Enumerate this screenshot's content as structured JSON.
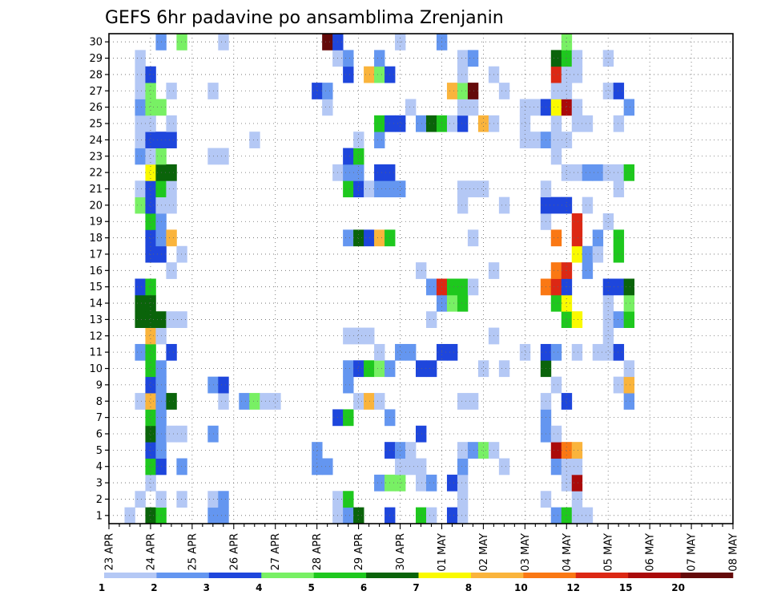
{
  "chart_data": {
    "type": "heatmap",
    "title": "GEFS 6hr padavine po ansamblima Zrenjanin",
    "xlabel": "",
    "ylabel": "",
    "x_tick_labels": [
      "23 APR",
      "24 APR",
      "25 APR",
      "26 APR",
      "27 APR",
      "28 APR",
      "29 APR",
      "30 APR",
      "01 MAY",
      "02 MAY",
      "03 MAY",
      "04 MAY",
      "05 MAY",
      "06 MAY",
      "07 MAY",
      "08 MAY"
    ],
    "y_tick_labels": [
      "1",
      "2",
      "3",
      "4",
      "5",
      "6",
      "7",
      "8",
      "9",
      "10",
      "11",
      "12",
      "13",
      "14",
      "15",
      "16",
      "17",
      "18",
      "19",
      "20",
      "21",
      "22",
      "23",
      "24",
      "25",
      "26",
      "27",
      "28",
      "29",
      "30"
    ],
    "x_steps_per_day": 4,
    "x_step_count": 61,
    "y_range": [
      1,
      30
    ],
    "grid": true,
    "colorbar": {
      "levels": [
        "1",
        "2",
        "3",
        "4",
        "5",
        "6",
        "7",
        "8",
        "10",
        "12",
        "15",
        "20"
      ],
      "colors": [
        "#b4c8f5",
        "#6496f0",
        "#1e46dc",
        "#78f064",
        "#1ec81e",
        "#0a640a",
        "#fafa00",
        "#fab43c",
        "#fa7814",
        "#dc2814",
        "#aa0a0a",
        "#640a0a"
      ]
    },
    "cells_format": "[timestep_index, ensemble_member, color_class]",
    "cells": [
      [
        2,
        1,
        1
      ],
      [
        3,
        2,
        1
      ],
      [
        3,
        8,
        1
      ],
      [
        4,
        8,
        1
      ],
      [
        3,
        11,
        2
      ],
      [
        3,
        13,
        6
      ],
      [
        3,
        14,
        6
      ],
      [
        3,
        15,
        3
      ],
      [
        3,
        20,
        4
      ],
      [
        3,
        21,
        1
      ],
      [
        3,
        23,
        2
      ],
      [
        3,
        24,
        1
      ],
      [
        3,
        25,
        1
      ],
      [
        3,
        26,
        2
      ],
      [
        3,
        27,
        1
      ],
      [
        3,
        28,
        1
      ],
      [
        3,
        29,
        1
      ],
      [
        4,
        1,
        6
      ],
      [
        4,
        3,
        1
      ],
      [
        4,
        4,
        5
      ],
      [
        4,
        5,
        3
      ],
      [
        4,
        6,
        6
      ],
      [
        4,
        7,
        5
      ],
      [
        4,
        8,
        8
      ],
      [
        4,
        9,
        3
      ],
      [
        4,
        10,
        5
      ],
      [
        4,
        11,
        5
      ],
      [
        4,
        12,
        8
      ],
      [
        4,
        13,
        6
      ],
      [
        4,
        14,
        6
      ],
      [
        4,
        15,
        5
      ],
      [
        4,
        17,
        3
      ],
      [
        4,
        18,
        3
      ],
      [
        4,
        19,
        5
      ],
      [
        4,
        20,
        3
      ],
      [
        4,
        21,
        3
      ],
      [
        4,
        22,
        7
      ],
      [
        4,
        23,
        1
      ],
      [
        4,
        24,
        3
      ],
      [
        4,
        25,
        1
      ],
      [
        4,
        26,
        4
      ],
      [
        4,
        27,
        4
      ],
      [
        4,
        28,
        3
      ],
      [
        5,
        1,
        5
      ],
      [
        5,
        2,
        1
      ],
      [
        5,
        4,
        3
      ],
      [
        5,
        5,
        2
      ],
      [
        5,
        6,
        2
      ],
      [
        5,
        7,
        2
      ],
      [
        5,
        8,
        2
      ],
      [
        5,
        9,
        2
      ],
      [
        5,
        10,
        2
      ],
      [
        5,
        12,
        1
      ],
      [
        5,
        13,
        6
      ],
      [
        5,
        17,
        3
      ],
      [
        5,
        18,
        2
      ],
      [
        5,
        19,
        2
      ],
      [
        5,
        20,
        1
      ],
      [
        5,
        21,
        5
      ],
      [
        5,
        22,
        6
      ],
      [
        5,
        23,
        4
      ],
      [
        5,
        24,
        3
      ],
      [
        5,
        26,
        4
      ],
      [
        5,
        30,
        2
      ],
      [
        6,
        6,
        1
      ],
      [
        6,
        8,
        6
      ],
      [
        6,
        11,
        3
      ],
      [
        6,
        13,
        1
      ],
      [
        6,
        16,
        1
      ],
      [
        6,
        18,
        8
      ],
      [
        6,
        20,
        1
      ],
      [
        6,
        21,
        1
      ],
      [
        6,
        22,
        6
      ],
      [
        6,
        24,
        3
      ],
      [
        6,
        25,
        1
      ],
      [
        6,
        27,
        1
      ],
      [
        7,
        2,
        1
      ],
      [
        7,
        4,
        2
      ],
      [
        7,
        6,
        1
      ],
      [
        7,
        13,
        1
      ],
      [
        7,
        17,
        1
      ],
      [
        7,
        30,
        4
      ],
      [
        10,
        1,
        2
      ],
      [
        10,
        2,
        1
      ],
      [
        10,
        6,
        2
      ],
      [
        10,
        9,
        2
      ],
      [
        10,
        23,
        1
      ],
      [
        10,
        27,
        1
      ],
      [
        11,
        1,
        2
      ],
      [
        11,
        2,
        2
      ],
      [
        11,
        8,
        1
      ],
      [
        11,
        9,
        3
      ],
      [
        11,
        23,
        1
      ],
      [
        11,
        30,
        1
      ],
      [
        13,
        8,
        2
      ],
      [
        14,
        8,
        4
      ],
      [
        14,
        24,
        1
      ],
      [
        15,
        8,
        1
      ],
      [
        16,
        8,
        1
      ],
      [
        20,
        4,
        2
      ],
      [
        20,
        5,
        2
      ],
      [
        20,
        27,
        3
      ],
      [
        21,
        4,
        2
      ],
      [
        21,
        26,
        1
      ],
      [
        21,
        27,
        2
      ],
      [
        21,
        30,
        12
      ],
      [
        22,
        1,
        1
      ],
      [
        22,
        2,
        1
      ],
      [
        22,
        7,
        3
      ],
      [
        22,
        22,
        1
      ],
      [
        22,
        29,
        1
      ],
      [
        22,
        30,
        3
      ],
      [
        23,
        1,
        2
      ],
      [
        23,
        2,
        5
      ],
      [
        23,
        7,
        5
      ],
      [
        23,
        9,
        2
      ],
      [
        23,
        10,
        2
      ],
      [
        23,
        12,
        1
      ],
      [
        23,
        18,
        2
      ],
      [
        23,
        21,
        5
      ],
      [
        23,
        22,
        2
      ],
      [
        23,
        23,
        3
      ],
      [
        23,
        28,
        3
      ],
      [
        23,
        29,
        2
      ],
      [
        24,
        1,
        6
      ],
      [
        24,
        8,
        1
      ],
      [
        24,
        10,
        3
      ],
      [
        24,
        12,
        1
      ],
      [
        24,
        18,
        6
      ],
      [
        24,
        21,
        3
      ],
      [
        24,
        22,
        2
      ],
      [
        24,
        23,
        5
      ],
      [
        24,
        24,
        1
      ],
      [
        25,
        8,
        8
      ],
      [
        25,
        10,
        5
      ],
      [
        25,
        12,
        1
      ],
      [
        25,
        18,
        3
      ],
      [
        25,
        21,
        1
      ],
      [
        25,
        28,
        8
      ],
      [
        26,
        3,
        2
      ],
      [
        26,
        8,
        1
      ],
      [
        26,
        10,
        4
      ],
      [
        26,
        11,
        1
      ],
      [
        26,
        18,
        8
      ],
      [
        26,
        21,
        2
      ],
      [
        26,
        22,
        3
      ],
      [
        26,
        24,
        2
      ],
      [
        26,
        25,
        5
      ],
      [
        26,
        28,
        4
      ],
      [
        26,
        29,
        2
      ],
      [
        27,
        1,
        3
      ],
      [
        27,
        3,
        4
      ],
      [
        27,
        5,
        3
      ],
      [
        27,
        7,
        2
      ],
      [
        27,
        10,
        2
      ],
      [
        27,
        18,
        5
      ],
      [
        27,
        21,
        2
      ],
      [
        27,
        22,
        3
      ],
      [
        27,
        25,
        3
      ],
      [
        27,
        28,
        3
      ],
      [
        28,
        3,
        4
      ],
      [
        28,
        4,
        1
      ],
      [
        28,
        5,
        2
      ],
      [
        28,
        11,
        2
      ],
      [
        28,
        21,
        2
      ],
      [
        28,
        25,
        3
      ],
      [
        28,
        30,
        1
      ],
      [
        29,
        4,
        1
      ],
      [
        29,
        5,
        1
      ],
      [
        29,
        11,
        2
      ],
      [
        29,
        26,
        1
      ],
      [
        30,
        1,
        5
      ],
      [
        30,
        3,
        1
      ],
      [
        30,
        4,
        1
      ],
      [
        30,
        6,
        3
      ],
      [
        30,
        10,
        3
      ],
      [
        30,
        16,
        1
      ],
      [
        30,
        25,
        2
      ],
      [
        31,
        1,
        1
      ],
      [
        31,
        3,
        2
      ],
      [
        31,
        10,
        3
      ],
      [
        31,
        13,
        1
      ],
      [
        31,
        15,
        2
      ],
      [
        31,
        25,
        6
      ],
      [
        32,
        11,
        3
      ],
      [
        32,
        14,
        2
      ],
      [
        32,
        15,
        10
      ],
      [
        32,
        25,
        5
      ],
      [
        32,
        30,
        2
      ],
      [
        33,
        1,
        3
      ],
      [
        33,
        3,
        3
      ],
      [
        33,
        11,
        3
      ],
      [
        33,
        14,
        4
      ],
      [
        33,
        15,
        5
      ],
      [
        33,
        25,
        1
      ],
      [
        33,
        27,
        8
      ],
      [
        34,
        1,
        1
      ],
      [
        34,
        2,
        1
      ],
      [
        34,
        3,
        1
      ],
      [
        34,
        4,
        2
      ],
      [
        34,
        5,
        1
      ],
      [
        34,
        8,
        1
      ],
      [
        34,
        14,
        5
      ],
      [
        34,
        15,
        5
      ],
      [
        34,
        20,
        1
      ],
      [
        34,
        21,
        1
      ],
      [
        34,
        25,
        3
      ],
      [
        34,
        26,
        1
      ],
      [
        34,
        27,
        4
      ],
      [
        34,
        28,
        1
      ],
      [
        34,
        29,
        1
      ],
      [
        35,
        5,
        2
      ],
      [
        35,
        8,
        1
      ],
      [
        35,
        15,
        1
      ],
      [
        35,
        18,
        1
      ],
      [
        35,
        21,
        1
      ],
      [
        35,
        26,
        1
      ],
      [
        35,
        27,
        12
      ],
      [
        35,
        29,
        2
      ],
      [
        36,
        5,
        4
      ],
      [
        36,
        10,
        1
      ],
      [
        36,
        21,
        1
      ],
      [
        36,
        25,
        8
      ],
      [
        37,
        5,
        1
      ],
      [
        37,
        12,
        1
      ],
      [
        37,
        16,
        1
      ],
      [
        37,
        25,
        1
      ],
      [
        37,
        28,
        1
      ],
      [
        38,
        4,
        1
      ],
      [
        38,
        10,
        1
      ],
      [
        38,
        20,
        1
      ],
      [
        38,
        27,
        1
      ],
      [
        40,
        11,
        1
      ],
      [
        40,
        24,
        1
      ],
      [
        40,
        25,
        1
      ],
      [
        40,
        26,
        1
      ],
      [
        41,
        24,
        1
      ],
      [
        41,
        26,
        1
      ],
      [
        42,
        2,
        1
      ],
      [
        42,
        6,
        2
      ],
      [
        42,
        7,
        2
      ],
      [
        42,
        8,
        1
      ],
      [
        42,
        10,
        6
      ],
      [
        42,
        11,
        3
      ],
      [
        42,
        15,
        9
      ],
      [
        42,
        19,
        1
      ],
      [
        42,
        20,
        3
      ],
      [
        42,
        21,
        1
      ],
      [
        42,
        24,
        2
      ],
      [
        42,
        26,
        3
      ],
      [
        43,
        1,
        2
      ],
      [
        43,
        4,
        2
      ],
      [
        43,
        5,
        11
      ],
      [
        43,
        6,
        1
      ],
      [
        43,
        9,
        1
      ],
      [
        43,
        11,
        2
      ],
      [
        43,
        14,
        5
      ],
      [
        43,
        15,
        10
      ],
      [
        43,
        16,
        9
      ],
      [
        43,
        18,
        9
      ],
      [
        43,
        20,
        3
      ],
      [
        43,
        23,
        1
      ],
      [
        43,
        24,
        1
      ],
      [
        43,
        25,
        1
      ],
      [
        43,
        26,
        7
      ],
      [
        43,
        27,
        1
      ],
      [
        43,
        28,
        10
      ],
      [
        43,
        29,
        6
      ],
      [
        44,
        1,
        5
      ],
      [
        44,
        3,
        1
      ],
      [
        44,
        4,
        1
      ],
      [
        44,
        5,
        9
      ],
      [
        44,
        8,
        3
      ],
      [
        44,
        13,
        5
      ],
      [
        44,
        14,
        7
      ],
      [
        44,
        15,
        3
      ],
      [
        44,
        16,
        10
      ],
      [
        44,
        20,
        3
      ],
      [
        44,
        22,
        1
      ],
      [
        44,
        24,
        1
      ],
      [
        44,
        26,
        11
      ],
      [
        44,
        27,
        1
      ],
      [
        44,
        28,
        1
      ],
      [
        44,
        29,
        5
      ],
      [
        44,
        30,
        4
      ],
      [
        45,
        1,
        1
      ],
      [
        45,
        2,
        1
      ],
      [
        45,
        3,
        11
      ],
      [
        45,
        4,
        1
      ],
      [
        45,
        5,
        8
      ],
      [
        45,
        11,
        1
      ],
      [
        45,
        13,
        7
      ],
      [
        45,
        17,
        7
      ],
      [
        45,
        18,
        10
      ],
      [
        45,
        19,
        10
      ],
      [
        45,
        22,
        1
      ],
      [
        45,
        25,
        1
      ],
      [
        45,
        26,
        1
      ],
      [
        45,
        28,
        1
      ],
      [
        45,
        29,
        1
      ],
      [
        46,
        1,
        1
      ],
      [
        46,
        16,
        2
      ],
      [
        46,
        17,
        2
      ],
      [
        46,
        20,
        1
      ],
      [
        46,
        22,
        2
      ],
      [
        46,
        25,
        1
      ],
      [
        47,
        11,
        1
      ],
      [
        47,
        17,
        1
      ],
      [
        47,
        18,
        2
      ],
      [
        47,
        22,
        2
      ],
      [
        48,
        11,
        1
      ],
      [
        48,
        12,
        1
      ],
      [
        48,
        13,
        1
      ],
      [
        48,
        14,
        1
      ],
      [
        48,
        15,
        3
      ],
      [
        48,
        19,
        1
      ],
      [
        48,
        22,
        1
      ],
      [
        48,
        27,
        1
      ],
      [
        48,
        29,
        1
      ],
      [
        49,
        9,
        1
      ],
      [
        49,
        11,
        3
      ],
      [
        49,
        13,
        2
      ],
      [
        49,
        15,
        3
      ],
      [
        49,
        17,
        5
      ],
      [
        49,
        18,
        5
      ],
      [
        49,
        21,
        1
      ],
      [
        49,
        22,
        1
      ],
      [
        49,
        25,
        1
      ],
      [
        49,
        27,
        3
      ],
      [
        50,
        8,
        2
      ],
      [
        50,
        9,
        8
      ],
      [
        50,
        10,
        1
      ],
      [
        50,
        13,
        5
      ],
      [
        50,
        14,
        4
      ],
      [
        50,
        15,
        6
      ],
      [
        50,
        22,
        5
      ],
      [
        50,
        26,
        2
      ]
    ]
  }
}
